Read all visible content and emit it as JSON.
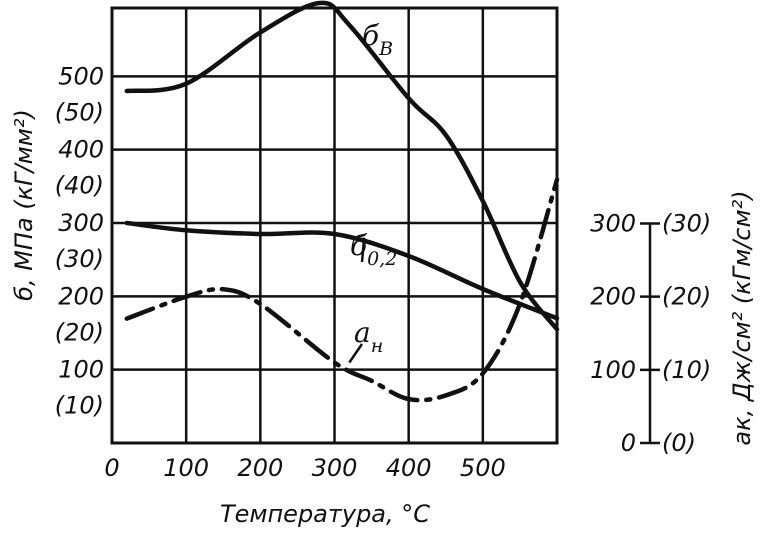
{
  "chart_data": {
    "type": "line",
    "xlabel": "Температура, °С",
    "ylabel_left": "б, МПа (кГ/мм²)",
    "ylabel_right": "aк, Дж/см² (кГм/см²)",
    "xlim": [
      0,
      600
    ],
    "ylim_left": [
      0,
      650
    ],
    "ylim_right": [
      0,
      300
    ],
    "x_ticks": [
      "0",
      "100",
      "200",
      "300",
      "400",
      "500"
    ],
    "y_left_ticks": [
      {
        "value": 100,
        "label": "100",
        "sub": "(10)"
      },
      {
        "value": 200,
        "label": "200",
        "sub": "(20)"
      },
      {
        "value": 300,
        "label": "300",
        "sub": "(30)"
      },
      {
        "value": 400,
        "label": "400",
        "sub": "(40)"
      },
      {
        "value": 500,
        "label": "500",
        "sub": "(50)"
      }
    ],
    "y_right_ticks": [
      {
        "value": 0,
        "label": "0",
        "sub": "(0)"
      },
      {
        "value": 100,
        "label": "100",
        "sub": "(10)"
      },
      {
        "value": 200,
        "label": "200",
        "sub": "(20)"
      },
      {
        "value": 300,
        "label": "300",
        "sub": "(30)"
      }
    ],
    "grid": true,
    "series": [
      {
        "name": "бв",
        "label_main": "б",
        "label_sub": "В",
        "axis": "left",
        "style": "solid",
        "x": [
          20,
          100,
          200,
          280,
          320,
          400,
          450,
          500,
          550,
          600
        ],
        "y": [
          480,
          490,
          560,
          600,
          570,
          470,
          420,
          330,
          220,
          155
        ]
      },
      {
        "name": "б0,2",
        "label_main": "б",
        "label_sub": "0,2",
        "axis": "left",
        "style": "solid",
        "x": [
          20,
          100,
          200,
          300,
          400,
          500,
          600
        ],
        "y": [
          300,
          290,
          285,
          285,
          255,
          210,
          170
        ]
      },
      {
        "name": "aн",
        "label_main": "a",
        "label_sub": "н",
        "axis": "right",
        "style": "dashdot",
        "x": [
          20,
          100,
          150,
          200,
          300,
          350,
          400,
          450,
          500,
          550,
          600
        ],
        "y": [
          170,
          200,
          210,
          190,
          110,
          85,
          60,
          65,
          95,
          190,
          360
        ]
      }
    ]
  }
}
